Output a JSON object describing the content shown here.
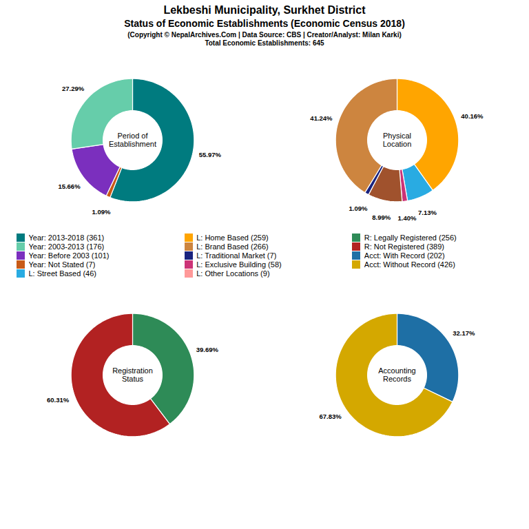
{
  "title": "Lekbeshi Municipality, Surkhet District",
  "subtitle": "Status of Economic Establishments (Economic Census 2018)",
  "annotations": [
    "(Copyright © NepalArchives.Com | Data Source: CBS | Creator/Analyst: Milan Karki)",
    "Total Economic Establishments: 645"
  ],
  "legend_entries": [
    {
      "name": "Year: 2013-2018 (361)",
      "color": "#007B7F"
    },
    {
      "name": "Year: 2003-2013 (176)",
      "color": "#66CDAA"
    },
    {
      "name": "Year: Before 2003 (101)",
      "color": "#7B2FBE"
    },
    {
      "name": "Year: Not Stated (7)",
      "color": "#C85A17"
    },
    {
      "name": "L: Street Based (46)",
      "color": "#29ABE2"
    },
    {
      "name": "L: Home Based (259)",
      "color": "#FFA500"
    },
    {
      "name": "L: Brand Based (266)",
      "color": "#CD853F"
    },
    {
      "name": "L: Traditional Market (7)",
      "color": "#1A237E"
    },
    {
      "name": "L: Exclusive Building (58)",
      "color": "#CC3377"
    },
    {
      "name": "L: Other Locations (9)",
      "color": "#FF9999"
    },
    {
      "name": "R: Legally Registered (256)",
      "color": "#2E8B57"
    },
    {
      "name": "R: Not Registered (389)",
      "color": "#B22222"
    },
    {
      "name": "Acct: With Record (202)",
      "color": "#1E6FA5"
    },
    {
      "name": "Acct: Without Record (426)",
      "color": "#D4A800"
    }
  ],
  "chart_data": [
    {
      "type": "donut",
      "title": "Period of\nEstablishment",
      "values": [
        55.97,
        1.09,
        15.66,
        27.29
      ],
      "value_labels": [
        "55.97%",
        "1.09%",
        "15.66%",
        "27.29%"
      ],
      "colors": [
        "#007B7F",
        "#C85A17",
        "#7B2FBE",
        "#66CDAA"
      ],
      "data_labels": true
    },
    {
      "type": "donut",
      "title": "Physical\nLocation",
      "values": [
        40.16,
        7.13,
        1.4,
        8.99,
        1.09,
        41.24
      ],
      "value_labels": [
        "40.16%",
        "7.13%",
        "1.40%",
        "8.99%",
        "1.09%",
        "41.24%"
      ],
      "colors": [
        "#FFA500",
        "#29ABE2",
        "#CC3377",
        "#A0522D",
        "#1A237E",
        "#CD853F"
      ],
      "data_labels": true
    },
    {
      "type": "donut",
      "title": "Registration\nStatus",
      "values": [
        39.69,
        60.31
      ],
      "value_labels": [
        "39.69%",
        "60.31%"
      ],
      "colors": [
        "#2E8B57",
        "#B22222"
      ],
      "data_labels": true
    },
    {
      "type": "donut",
      "title": "Accounting\nRecords",
      "values": [
        32.17,
        67.83
      ],
      "value_labels": [
        "32.17%",
        "67.83%"
      ],
      "colors": [
        "#1E6FA5",
        "#D4A800"
      ],
      "data_labels": true
    }
  ]
}
